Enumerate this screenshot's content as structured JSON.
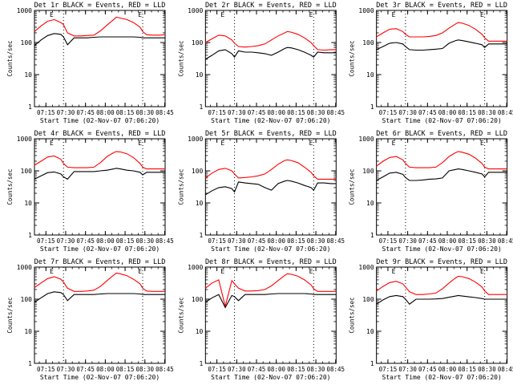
{
  "chart_data": [
    {
      "type": "line",
      "title": "Det 1r BLACK = Events, RED = LLD",
      "xlabel": "Start Time (02-Nov-07 07:06:20)",
      "ylabel": "Counts/sec",
      "x_ticks": [
        "07:15",
        "07:30",
        "07:45",
        "08:00",
        "08:15",
        "08:30",
        "08:45"
      ],
      "y_ticks": [
        "1",
        "10",
        "100",
        "1000"
      ],
      "ylim": [
        1,
        1000
      ],
      "yscale": "log",
      "x_minutes": [
        0,
        5,
        10,
        15,
        20,
        22,
        25,
        30,
        35,
        40,
        45,
        50,
        55,
        60,
        62,
        65,
        70,
        75,
        80,
        82,
        85,
        90,
        95,
        99
      ],
      "series": [
        {
          "name": "RED = LLD",
          "color": "#ff0000",
          "values": [
            220,
            330,
            460,
            520,
            420,
            360,
            200,
            160,
            160,
            165,
            170,
            230,
            350,
            520,
            620,
            580,
            520,
            420,
            300,
            220,
            175,
            170,
            170,
            175
          ]
        },
        {
          "name": "BLACK = Events",
          "color": "#000000",
          "values": [
            80,
            120,
            165,
            190,
            180,
            150,
            85,
            140,
            140,
            140,
            145,
            150,
            150,
            150,
            150,
            150,
            150,
            150,
            145,
            140,
            140,
            140,
            140,
            140
          ]
        }
      ],
      "markers": {
        "vlines_minutes": [
          22,
          82
        ],
        "event_labels": [
          "E",
          "E"
        ],
        "event_minutes": [
          13,
          80
        ]
      }
    },
    {
      "type": "line",
      "title": "Det 2r BLACK = Events, RED = LLD",
      "xlabel": "Start Time (02-Nov-07 07:06:20)",
      "ylabel": "Counts/sec",
      "x_ticks": [
        "07:15",
        "07:30",
        "07:45",
        "08:00",
        "08:15",
        "08:30",
        "08:45"
      ],
      "y_ticks": [
        "1",
        "10",
        "100",
        "1000"
      ],
      "ylim": [
        1,
        1000
      ],
      "yscale": "log",
      "x_minutes": [
        0,
        5,
        10,
        15,
        20,
        22,
        25,
        30,
        35,
        40,
        45,
        50,
        55,
        60,
        62,
        65,
        70,
        75,
        80,
        82,
        85,
        90,
        95,
        99
      ],
      "series": [
        {
          "name": "RED = LLD",
          "color": "#ff0000",
          "values": [
            100,
            130,
            170,
            160,
            120,
            95,
            75,
            72,
            75,
            80,
            90,
            120,
            160,
            200,
            220,
            210,
            180,
            140,
            100,
            80,
            60,
            58,
            60,
            60
          ]
        },
        {
          "name": "BLACK = Events",
          "color": "#000000",
          "values": [
            30,
            40,
            55,
            60,
            45,
            35,
            55,
            50,
            50,
            48,
            45,
            40,
            50,
            65,
            70,
            68,
            60,
            50,
            40,
            35,
            50,
            48,
            48,
            48
          ]
        }
      ],
      "markers": {
        "vlines_minutes": [
          22,
          82
        ],
        "event_labels": [
          "E",
          "E"
        ],
        "event_minutes": [
          13,
          80
        ]
      }
    },
    {
      "type": "line",
      "title": "Det 3r BLACK = Events, RED = LLD",
      "xlabel": "Start Time (02-Nov-07 07:06:20)",
      "ylabel": "Counts/sec",
      "x_ticks": [
        "07:15",
        "07:30",
        "07:45",
        "08:00",
        "08:15",
        "08:30",
        "08:45"
      ],
      "y_ticks": [
        "1",
        "10",
        "100",
        "1000"
      ],
      "ylim": [
        1,
        1000
      ],
      "yscale": "log",
      "x_minutes": [
        0,
        5,
        10,
        15,
        20,
        22,
        25,
        30,
        35,
        40,
        45,
        50,
        55,
        60,
        62,
        65,
        70,
        75,
        80,
        82,
        85,
        90,
        95,
        99
      ],
      "series": [
        {
          "name": "RED = LLD",
          "color": "#ff0000",
          "values": [
            150,
            200,
            260,
            270,
            220,
            180,
            150,
            150,
            150,
            155,
            165,
            200,
            280,
            380,
            420,
            400,
            340,
            260,
            180,
            140,
            110,
            110,
            110,
            110
          ]
        },
        {
          "name": "BLACK = Events",
          "color": "#000000",
          "values": [
            60,
            75,
            95,
            100,
            90,
            75,
            60,
            58,
            58,
            60,
            62,
            65,
            95,
            115,
            120,
            115,
            105,
            95,
            85,
            70,
            90,
            90,
            90,
            90
          ]
        }
      ],
      "markers": {
        "vlines_minutes": [
          22,
          82
        ],
        "event_labels": [
          "E",
          "E"
        ],
        "event_minutes": [
          13,
          80
        ]
      }
    },
    {
      "type": "line",
      "title": "Det 4r BLACK = Events, RED = LLD",
      "xlabel": "Start Time (02-Nov-07 07:06:20)",
      "ylabel": "Counts/sec",
      "x_ticks": [
        "07:15",
        "07:30",
        "07:45",
        "08:00",
        "08:15",
        "08:30",
        "08:45"
      ],
      "y_ticks": [
        "1",
        "10",
        "100",
        "1000"
      ],
      "ylim": [
        1,
        1000
      ],
      "yscale": "log",
      "x_minutes": [
        0,
        5,
        10,
        15,
        20,
        22,
        25,
        30,
        35,
        40,
        45,
        50,
        55,
        60,
        62,
        65,
        70,
        75,
        80,
        82,
        85,
        90,
        95,
        99
      ],
      "series": [
        {
          "name": "RED = LLD",
          "color": "#ff0000",
          "values": [
            150,
            200,
            270,
            290,
            230,
            170,
            130,
            125,
            125,
            125,
            130,
            180,
            280,
            370,
            400,
            390,
            340,
            260,
            170,
            130,
            115,
            115,
            115,
            115
          ]
        },
        {
          "name": "BLACK = Events",
          "color": "#000000",
          "values": [
            55,
            70,
            88,
            92,
            80,
            65,
            55,
            95,
            95,
            95,
            95,
            100,
            105,
            115,
            120,
            115,
            105,
            100,
            90,
            75,
            90,
            90,
            90,
            90
          ]
        }
      ],
      "markers": {
        "vlines_minutes": [
          22,
          82
        ],
        "event_labels": [
          "E",
          "E"
        ],
        "event_minutes": [
          13,
          80
        ]
      }
    },
    {
      "type": "line",
      "title": "Det 5r BLACK = Events, RED = LLD",
      "xlabel": "Start Time (02-Nov-07 07:06:20)",
      "ylabel": "Counts/sec",
      "x_ticks": [
        "07:15",
        "07:30",
        "07:45",
        "08:00",
        "08:15",
        "08:30",
        "08:45"
      ],
      "y_ticks": [
        "1",
        "10",
        "100",
        "1000"
      ],
      "ylim": [
        1,
        1000
      ],
      "yscale": "log",
      "x_minutes": [
        0,
        5,
        10,
        15,
        20,
        22,
        25,
        30,
        35,
        40,
        45,
        50,
        55,
        60,
        62,
        65,
        70,
        75,
        80,
        82,
        85,
        90,
        95,
        99
      ],
      "series": [
        {
          "name": "RED = LLD",
          "color": "#ff0000",
          "values": [
            60,
            85,
            110,
            120,
            100,
            80,
            60,
            62,
            65,
            70,
            80,
            110,
            160,
            210,
            220,
            210,
            180,
            130,
            90,
            70,
            55,
            55,
            55,
            55
          ]
        },
        {
          "name": "BLACK = Events",
          "color": "#000000",
          "values": [
            18,
            24,
            30,
            32,
            28,
            22,
            45,
            42,
            40,
            38,
            30,
            25,
            40,
            48,
            50,
            48,
            42,
            35,
            30,
            25,
            42,
            42,
            40,
            40
          ]
        }
      ],
      "markers": {
        "vlines_minutes": [
          22,
          82
        ],
        "event_labels": [
          "E",
          "E"
        ],
        "event_minutes": [
          13,
          80
        ]
      }
    },
    {
      "type": "line",
      "title": "Det 6r BLACK = Events, RED = LLD",
      "xlabel": "Start Time (02-Nov-07 07:06:20)",
      "ylabel": "Counts/sec",
      "x_ticks": [
        "07:15",
        "07:30",
        "07:45",
        "08:00",
        "08:15",
        "08:30",
        "08:45"
      ],
      "y_ticks": [
        "1",
        "10",
        "100",
        "1000"
      ],
      "ylim": [
        1,
        1000
      ],
      "yscale": "log",
      "x_minutes": [
        0,
        5,
        10,
        15,
        20,
        22,
        25,
        30,
        35,
        40,
        45,
        50,
        55,
        60,
        62,
        65,
        70,
        75,
        80,
        82,
        85,
        90,
        95,
        99
      ],
      "series": [
        {
          "name": "RED = LLD",
          "color": "#ff0000",
          "values": [
            140,
            200,
            260,
            280,
            220,
            170,
            130,
            125,
            125,
            125,
            130,
            180,
            280,
            370,
            400,
            380,
            330,
            250,
            170,
            130,
            115,
            115,
            115,
            115
          ]
        },
        {
          "name": "BLACK = Events",
          "color": "#000000",
          "values": [
            50,
            65,
            85,
            90,
            78,
            62,
            50,
            50,
            52,
            55,
            56,
            60,
            100,
            110,
            115,
            110,
            100,
            90,
            80,
            65,
            90,
            90,
            90,
            90
          ]
        }
      ],
      "markers": {
        "vlines_minutes": [
          22,
          82
        ],
        "event_labels": [
          "E",
          "E"
        ],
        "event_minutes": [
          13,
          80
        ]
      }
    },
    {
      "type": "line",
      "title": "Det 7r BLACK = Events, RED = LLD",
      "xlabel": "Start Time (02-Nov-07 07:06:20)",
      "ylabel": "Counts/sec",
      "x_ticks": [
        "07:15",
        "07:30",
        "07:45",
        "08:00",
        "08:15",
        "08:30",
        "08:45"
      ],
      "y_ticks": [
        "1",
        "10",
        "100",
        "1000"
      ],
      "ylim": [
        1,
        1000
      ],
      "yscale": "log",
      "x_minutes": [
        0,
        5,
        10,
        15,
        20,
        22,
        25,
        30,
        35,
        40,
        45,
        50,
        55,
        60,
        62,
        65,
        70,
        75,
        80,
        82,
        85,
        90,
        95,
        99
      ],
      "series": [
        {
          "name": "RED = LLD",
          "color": "#ff0000",
          "values": [
            230,
            320,
            440,
            500,
            420,
            340,
            220,
            175,
            175,
            180,
            190,
            250,
            380,
            560,
            650,
            620,
            540,
            420,
            300,
            220,
            180,
            175,
            175,
            175
          ]
        },
        {
          "name": "BLACK = Events",
          "color": "#000000",
          "values": [
            80,
            110,
            150,
            170,
            160,
            140,
            90,
            140,
            140,
            140,
            140,
            145,
            150,
            150,
            150,
            150,
            150,
            150,
            145,
            140,
            140,
            140,
            140,
            140
          ]
        }
      ],
      "markers": {
        "vlines_minutes": [
          22,
          82
        ],
        "event_labels": [
          "E",
          "E"
        ],
        "event_minutes": [
          13,
          80
        ]
      }
    },
    {
      "type": "line",
      "title": "Det 8r BLACK = Events, RED = LLD",
      "xlabel": "Start Time (02-Nov-07 07:06:20)",
      "ylabel": "Counts/sec",
      "x_ticks": [
        "07:15",
        "07:30",
        "07:45",
        "08:00",
        "08:15",
        "08:30",
        "08:45"
      ],
      "y_ticks": [
        "1",
        "10",
        "100",
        "1000"
      ],
      "ylim": [
        1,
        1000
      ],
      "yscale": "log",
      "x_minutes": [
        0,
        5,
        10,
        15,
        20,
        22,
        25,
        30,
        35,
        40,
        45,
        50,
        55,
        60,
        62,
        65,
        70,
        75,
        80,
        82,
        85,
        90,
        95,
        99
      ],
      "series": [
        {
          "name": "RED = LLD",
          "color": "#ff0000",
          "values": [
            220,
            320,
            400,
            60,
            380,
            300,
            220,
            180,
            180,
            185,
            200,
            260,
            380,
            550,
            620,
            600,
            520,
            400,
            280,
            210,
            175,
            175,
            175,
            175
          ]
        },
        {
          "name": "BLACK = Events",
          "color": "#000000",
          "values": [
            80,
            110,
            140,
            55,
            130,
            120,
            90,
            140,
            140,
            140,
            140,
            145,
            150,
            150,
            150,
            150,
            150,
            150,
            145,
            140,
            140,
            140,
            140,
            140
          ]
        }
      ],
      "markers": {
        "vlines_minutes": [
          22,
          82
        ],
        "event_labels": [
          "E",
          "E"
        ],
        "event_minutes": [
          13,
          80
        ]
      }
    },
    {
      "type": "line",
      "title": "Det 9r BLACK = Events, RED = LLD",
      "xlabel": "Start Time (02-Nov-07 07:06:20)",
      "ylabel": "Counts/sec",
      "x_ticks": [
        "07:15",
        "07:30",
        "07:45",
        "08:00",
        "08:15",
        "08:30",
        "08:45"
      ],
      "y_ticks": [
        "1",
        "10",
        "100",
        "1000"
      ],
      "ylim": [
        1,
        1000
      ],
      "yscale": "log",
      "x_minutes": [
        0,
        5,
        10,
        15,
        20,
        22,
        25,
        30,
        35,
        40,
        45,
        50,
        55,
        60,
        62,
        65,
        70,
        75,
        80,
        82,
        85,
        90,
        95,
        99
      ],
      "series": [
        {
          "name": "RED = LLD",
          "color": "#ff0000",
          "values": [
            180,
            250,
            330,
            360,
            300,
            240,
            170,
            140,
            140,
            145,
            155,
            210,
            320,
            460,
            520,
            500,
            440,
            340,
            240,
            180,
            140,
            140,
            140,
            140
          ]
        },
        {
          "name": "BLACK = Events",
          "color": "#000000",
          "values": [
            70,
            95,
            120,
            130,
            120,
            100,
            70,
            100,
            100,
            100,
            102,
            105,
            115,
            125,
            130,
            125,
            118,
            112,
            105,
            100,
            100,
            100,
            100,
            100
          ]
        }
      ],
      "markers": {
        "vlines_minutes": [
          22,
          82
        ],
        "event_labels": [
          "E",
          "E"
        ],
        "event_minutes": [
          13,
          80
        ]
      }
    }
  ]
}
